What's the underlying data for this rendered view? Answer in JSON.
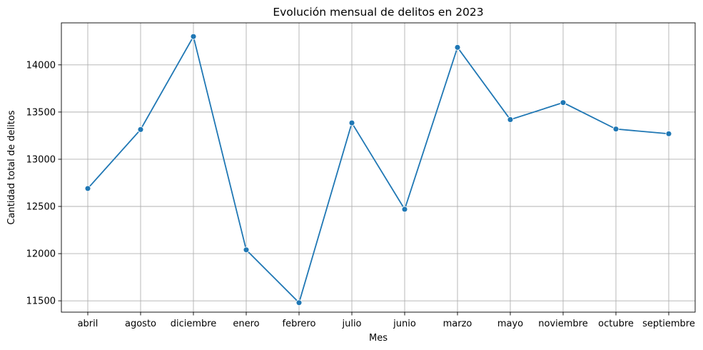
{
  "chart_data": {
    "type": "line",
    "title": "Evolución mensual de delitos en 2023",
    "xlabel": "Mes",
    "ylabel": "Cantidad total de delitos",
    "categories": [
      "abril",
      "agosto",
      "diciembre",
      "enero",
      "febrero",
      "julio",
      "junio",
      "marzo",
      "mayo",
      "noviembre",
      "octubre",
      "septiembre"
    ],
    "series": [
      {
        "values": [
          12690,
          13315,
          14300,
          12040,
          11480,
          13385,
          12470,
          14185,
          13420,
          13600,
          13320,
          13270
        ],
        "color": "#1f77b4",
        "marker": "circle"
      }
    ],
    "ylim": [
      11380,
      14445
    ],
    "yticks": [
      11500,
      12000,
      12500,
      13000,
      13500,
      14000
    ],
    "grid": true,
    "legend": "none"
  }
}
